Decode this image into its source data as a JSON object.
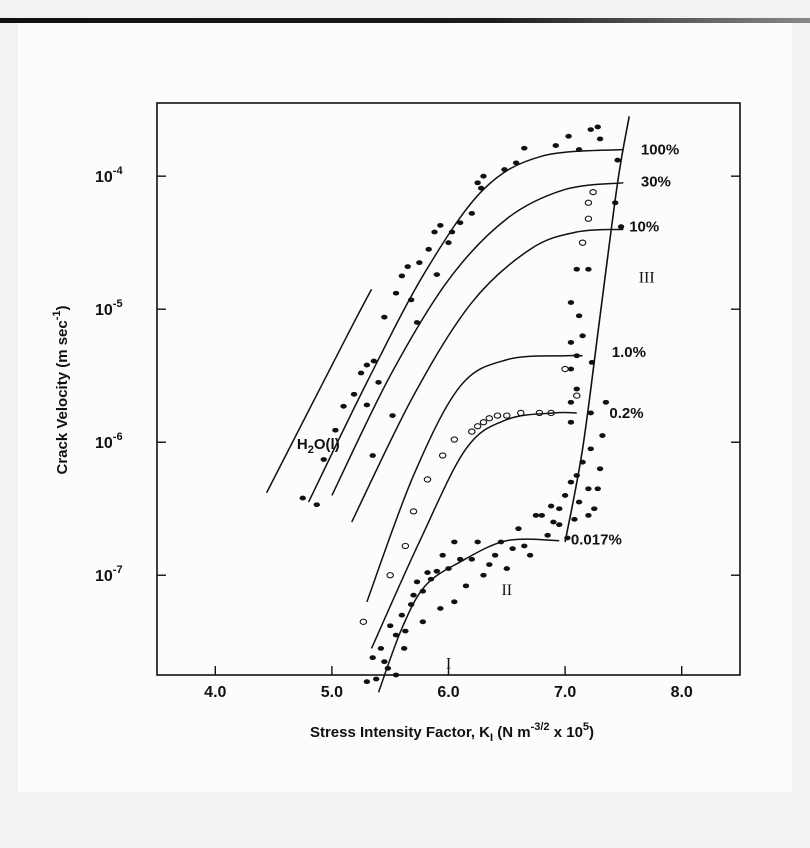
{
  "chart_data": {
    "type": "scatter",
    "title": "",
    "xlabel": "Stress Intensity Factor, K",
    "xlabel_sub": "I",
    "xlabel_units_a": " (N m",
    "xlabel_units_sup": "-3/2",
    "xlabel_units_b": " x 10",
    "xlabel_units_sup2": "5",
    "xlabel_units_c": ")",
    "ylabel": "Crack Velocity  (m sec",
    "ylabel_sup": "-1",
    "ylabel_end": ")",
    "xlim": [
      3.5,
      8.5
    ],
    "ylim_exp": [
      -7.75,
      -3.45
    ],
    "yscale": "log",
    "x_ticks": [
      "4.0",
      "5.0",
      "6.0",
      "7.0",
      "8.0"
    ],
    "x_tick_values": [
      4.0,
      5.0,
      6.0,
      7.0,
      8.0
    ],
    "y_ticks": [
      {
        "base": "10",
        "exp": "-4",
        "value": -4
      },
      {
        "base": "10",
        "exp": "-5",
        "value": -5
      },
      {
        "base": "10",
        "exp": "-6",
        "value": -6
      },
      {
        "base": "10",
        "exp": "-7",
        "value": -7
      }
    ],
    "region_labels": [
      {
        "text": "I",
        "x": 6.0,
        "y": -7.7
      },
      {
        "text": "II",
        "x": 6.5,
        "y": -7.15
      },
      {
        "text": "III",
        "x": 7.7,
        "y": -4.8
      }
    ],
    "water_label": {
      "pre": "H",
      "sub": "2",
      "post": "O(l)",
      "x": 4.7,
      "y": -6.05
    },
    "series": [
      {
        "name": "H2O(l)",
        "line": [
          [
            4.44,
            -6.38
          ],
          [
            5.13,
            -5.2
          ],
          [
            5.34,
            -4.85
          ]
        ],
        "filled": [
          [
            4.75,
            -6.42
          ],
          [
            4.87,
            -6.47
          ],
          [
            4.93,
            -6.13
          ],
          [
            5.03,
            -5.91
          ],
          [
            5.1,
            -5.73
          ],
          [
            5.19,
            -5.64
          ],
          [
            5.25,
            -5.48
          ],
          [
            5.3,
            -5.42
          ],
          [
            5.36,
            -5.39
          ],
          [
            5.4,
            -5.55
          ],
          [
            5.45,
            -5.06
          ],
          [
            5.55,
            -4.88
          ],
          [
            5.6,
            -4.75
          ],
          [
            5.65,
            -4.68
          ],
          [
            5.3,
            -5.72
          ]
        ]
      },
      {
        "name": "100%",
        "curve": [
          [
            4.8,
            -6.45
          ],
          [
            5.3,
            -5.55
          ],
          [
            5.8,
            -4.72
          ],
          [
            6.3,
            -4.1
          ],
          [
            6.8,
            -3.85
          ],
          [
            7.5,
            -3.8
          ]
        ],
        "filled": [
          [
            5.68,
            -4.93
          ],
          [
            5.75,
            -4.65
          ],
          [
            5.83,
            -4.55
          ],
          [
            5.88,
            -4.42
          ],
          [
            5.93,
            -4.37
          ],
          [
            6.03,
            -4.42
          ],
          [
            6.2,
            -4.28
          ],
          [
            6.28,
            -4.09
          ],
          [
            6.48,
            -3.95
          ],
          [
            6.58,
            -3.9
          ],
          [
            6.65,
            -3.79
          ],
          [
            6.92,
            -3.77
          ],
          [
            7.03,
            -3.7
          ],
          [
            7.12,
            -3.8
          ],
          [
            7.22,
            -3.65
          ],
          [
            7.28,
            -3.63
          ],
          [
            7.3,
            -3.72
          ],
          [
            7.45,
            -3.88
          ]
        ]
      },
      {
        "name": "30%",
        "curve": [
          [
            5.0,
            -6.4
          ],
          [
            5.5,
            -5.5
          ],
          [
            6.0,
            -4.78
          ],
          [
            6.5,
            -4.32
          ],
          [
            7.0,
            -4.1
          ],
          [
            7.5,
            -4.05
          ]
        ],
        "filled": [
          [
            5.9,
            -4.74
          ],
          [
            6.0,
            -4.5
          ],
          [
            6.1,
            -4.35
          ],
          [
            6.25,
            -4.05
          ],
          [
            6.3,
            -4.0
          ],
          [
            5.73,
            -5.1
          ],
          [
            5.52,
            -5.8
          ],
          [
            5.35,
            -6.1
          ]
        ]
      },
      {
        "name": "10%",
        "curve": [
          [
            5.17,
            -6.6
          ],
          [
            5.7,
            -5.65
          ],
          [
            6.2,
            -4.95
          ],
          [
            6.7,
            -4.55
          ],
          [
            7.1,
            -4.42
          ],
          [
            7.5,
            -4.4
          ]
        ],
        "filled": [
          [
            7.43,
            -4.2
          ],
          [
            7.48,
            -4.38
          ],
          [
            7.1,
            -4.7
          ],
          [
            7.2,
            -4.7
          ]
        ]
      },
      {
        "name": "1.0%",
        "curve": [
          [
            5.3,
            -7.2
          ],
          [
            5.7,
            -6.25
          ],
          [
            6.1,
            -5.58
          ],
          [
            6.5,
            -5.38
          ],
          [
            7.0,
            -5.35
          ],
          [
            7.15,
            -5.35
          ]
        ],
        "filled": [
          [
            7.05,
            -5.25
          ],
          [
            7.05,
            -5.45
          ],
          [
            7.1,
            -5.35
          ],
          [
            7.05,
            -4.95
          ],
          [
            7.12,
            -5.05
          ],
          [
            7.15,
            -5.2
          ],
          [
            7.1,
            -5.6
          ],
          [
            7.05,
            -5.7
          ],
          [
            7.23,
            -5.4
          ]
        ],
        "open": [
          [
            7.0,
            -5.45
          ],
          [
            7.1,
            -5.65
          ]
        ]
      },
      {
        "name": "0.2%",
        "curve": [
          [
            5.34,
            -7.55
          ],
          [
            5.75,
            -6.75
          ],
          [
            6.15,
            -6.05
          ],
          [
            6.5,
            -5.83
          ],
          [
            6.9,
            -5.78
          ],
          [
            7.1,
            -5.78
          ]
        ],
        "filled": [
          [
            7.22,
            -5.78
          ],
          [
            7.05,
            -5.85
          ]
        ],
        "open": [
          [
            5.27,
            -7.35
          ],
          [
            5.5,
            -7.0
          ],
          [
            5.63,
            -6.78
          ],
          [
            5.7,
            -6.52
          ],
          [
            5.82,
            -6.28
          ],
          [
            5.95,
            -6.1
          ],
          [
            6.05,
            -5.98
          ],
          [
            6.2,
            -5.92
          ],
          [
            6.25,
            -5.88
          ],
          [
            6.3,
            -5.85
          ],
          [
            6.35,
            -5.82
          ],
          [
            6.42,
            -5.8
          ],
          [
            6.5,
            -5.8
          ],
          [
            6.62,
            -5.78
          ],
          [
            6.78,
            -5.78
          ],
          [
            6.88,
            -5.78
          ],
          [
            7.2,
            -4.2
          ],
          [
            7.24,
            -4.12
          ],
          [
            7.2,
            -4.32
          ],
          [
            7.15,
            -4.5
          ]
        ]
      },
      {
        "name": "0.017%",
        "curve": [
          [
            5.4,
            -7.88
          ],
          [
            5.6,
            -7.4
          ],
          [
            5.8,
            -7.08
          ],
          [
            6.1,
            -6.9
          ],
          [
            6.5,
            -6.74
          ],
          [
            6.95,
            -6.74
          ]
        ],
        "filled": [
          [
            5.3,
            -7.8
          ],
          [
            5.35,
            -7.62
          ],
          [
            5.38,
            -7.78
          ],
          [
            5.42,
            -7.55
          ],
          [
            5.45,
            -7.65
          ],
          [
            5.5,
            -7.38
          ],
          [
            5.55,
            -7.45
          ],
          [
            5.6,
            -7.3
          ],
          [
            5.63,
            -7.42
          ],
          [
            5.68,
            -7.22
          ],
          [
            5.7,
            -7.15
          ],
          [
            5.73,
            -7.05
          ],
          [
            5.78,
            -7.12
          ],
          [
            5.82,
            -6.98
          ],
          [
            5.85,
            -7.03
          ],
          [
            5.9,
            -6.97
          ],
          [
            5.95,
            -6.85
          ],
          [
            6.0,
            -6.95
          ],
          [
            6.05,
            -6.75
          ],
          [
            6.1,
            -6.88
          ],
          [
            6.15,
            -7.08
          ],
          [
            6.2,
            -6.88
          ],
          [
            6.25,
            -6.75
          ],
          [
            6.3,
            -7.0
          ],
          [
            6.35,
            -6.92
          ],
          [
            6.4,
            -6.85
          ],
          [
            6.45,
            -6.75
          ],
          [
            6.5,
            -6.95
          ],
          [
            6.55,
            -6.8
          ],
          [
            6.6,
            -6.65
          ],
          [
            6.65,
            -6.78
          ],
          [
            6.7,
            -6.85
          ],
          [
            6.8,
            -6.55
          ],
          [
            6.85,
            -6.7
          ],
          [
            6.9,
            -6.6
          ],
          [
            6.95,
            -6.5
          ],
          [
            7.0,
            -6.4
          ],
          [
            7.05,
            -6.3
          ],
          [
            7.1,
            -6.25
          ],
          [
            7.12,
            -6.45
          ],
          [
            7.15,
            -6.15
          ],
          [
            7.2,
            -6.35
          ],
          [
            7.22,
            -6.05
          ],
          [
            7.25,
            -6.5
          ],
          [
            7.3,
            -6.2
          ],
          [
            7.28,
            -6.35
          ],
          [
            7.2,
            -6.55
          ],
          [
            5.55,
            -7.75
          ],
          [
            5.48,
            -7.7
          ],
          [
            5.62,
            -7.55
          ],
          [
            5.78,
            -7.35
          ],
          [
            5.93,
            -7.25
          ],
          [
            6.05,
            -7.2
          ],
          [
            6.75,
            -6.55
          ],
          [
            6.88,
            -6.48
          ],
          [
            6.95,
            -6.62
          ],
          [
            7.02,
            -6.72
          ],
          [
            7.08,
            -6.58
          ],
          [
            7.32,
            -5.95
          ],
          [
            7.35,
            -5.7
          ]
        ]
      }
    ],
    "boundary_III": [
      [
        7.0,
        -6.75
      ],
      [
        7.15,
        -6.05
      ],
      [
        7.3,
        -5.05
      ],
      [
        7.45,
        -4.05
      ],
      [
        7.55,
        -3.55
      ]
    ],
    "curve_labels": [
      {
        "text": "100%",
        "x": 7.65,
        "y": -3.8
      },
      {
        "text": "30%",
        "x": 7.65,
        "y": -4.04
      },
      {
        "text": "10%",
        "x": 7.55,
        "y": -4.38
      },
      {
        "text": "1.0%",
        "x": 7.4,
        "y": -5.32
      },
      {
        "text": "0.2%",
        "x": 7.38,
        "y": -5.78
      },
      {
        "text": "0.017%",
        "x": 7.05,
        "y": -6.73
      }
    ]
  }
}
